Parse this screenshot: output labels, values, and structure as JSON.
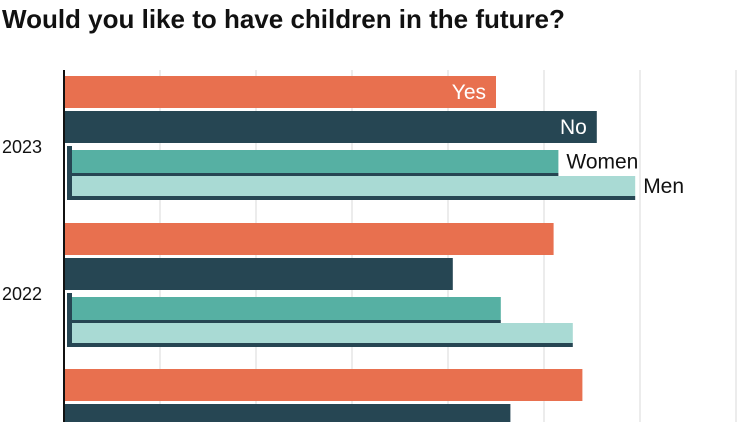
{
  "title": "Would you like to have children in the future?",
  "colors": {
    "yes": "#E8704F",
    "no": "#264653",
    "women": "#56B0A3",
    "men": "#A9DAD4",
    "grid": "#d9d9d9",
    "axis": "#111111",
    "label_light": "#ffffff",
    "label_dark": "#111111"
  },
  "chart_data": {
    "type": "bar",
    "orientation": "horizontal",
    "categories": [
      "2023",
      "2022",
      ""
    ],
    "series": [
      {
        "name": "Yes",
        "color": "#E8704F",
        "values": [
          45,
          51,
          54
        ]
      },
      {
        "name": "No",
        "color": "#264653",
        "values": [
          55.5,
          40.5,
          46.5
        ]
      },
      {
        "name": "Women",
        "color": "#56B0A3",
        "values": [
          51.5,
          45.5,
          null
        ]
      },
      {
        "name": "Men",
        "color": "#A9DAD4",
        "values": [
          59.5,
          53,
          null
        ]
      }
    ],
    "title": "Would you like to have children in the future?",
    "xlabel": "",
    "ylabel": "",
    "xlim": [
      0,
      70
    ],
    "grid": true,
    "legend": "inline labels on 2023 bars"
  }
}
